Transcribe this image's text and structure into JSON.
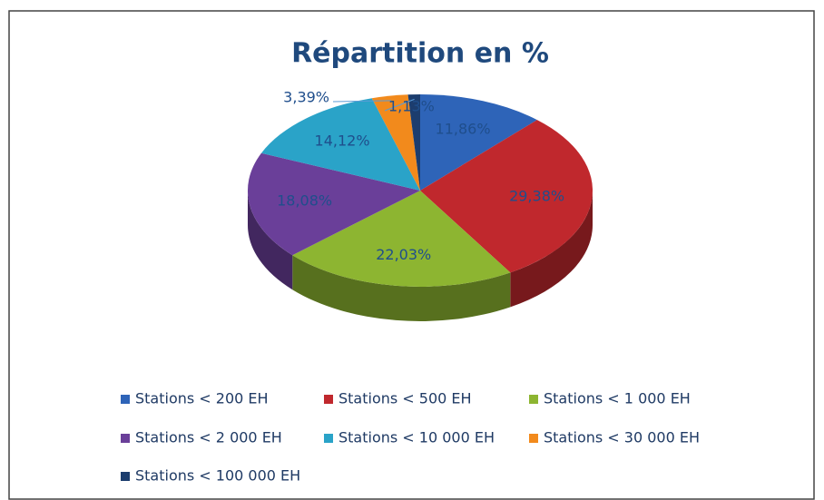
{
  "chart_data": {
    "type": "pie",
    "title": "Répartition en %",
    "categories": [
      "Stations < 200 EH",
      "Stations < 500 EH",
      "Stations < 1 000 EH",
      "Stations < 2 000 EH",
      "Stations < 10 000 EH",
      "Stations < 30 000 EH",
      "Stations < 100 000 EH"
    ],
    "values": [
      11.86,
      29.38,
      22.03,
      18.08,
      14.12,
      3.39,
      1.13
    ],
    "value_labels": [
      "11,86%",
      "29,38%",
      "22,03%",
      "18,08%",
      "14,12%",
      "3,39%",
      "1,13%"
    ],
    "colors": [
      "#2e64b8",
      "#c0282d",
      "#8db531",
      "#6a3f99",
      "#2aa3c8",
      "#f28a1c",
      "#1c3d6e"
    ],
    "legend": "bottom"
  }
}
